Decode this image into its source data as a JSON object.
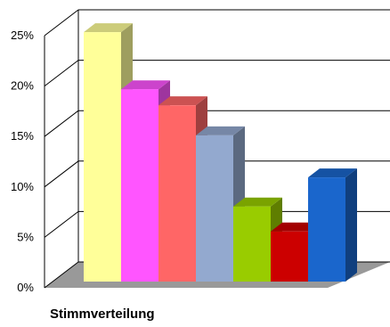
{
  "chart_data": {
    "type": "bar",
    "title": "Stimmverteilung",
    "xlabel": "",
    "ylabel": "",
    "ylim": [
      0,
      25
    ],
    "yticks": [
      "0%",
      "5%",
      "10%",
      "15%",
      "20%",
      "25%"
    ],
    "grid": true,
    "legend": "none",
    "style": "3d",
    "values": [
      24.9,
      19.2,
      17.6,
      14.6,
      7.5,
      5.0,
      10.4
    ],
    "colors": [
      "#ffff99",
      "#ff55ff",
      "#ff6666",
      "#93a9cf",
      "#99cc00",
      "#cc0000",
      "#1a66cc"
    ],
    "frame_color": "#000000",
    "floor_color": "#999999"
  }
}
